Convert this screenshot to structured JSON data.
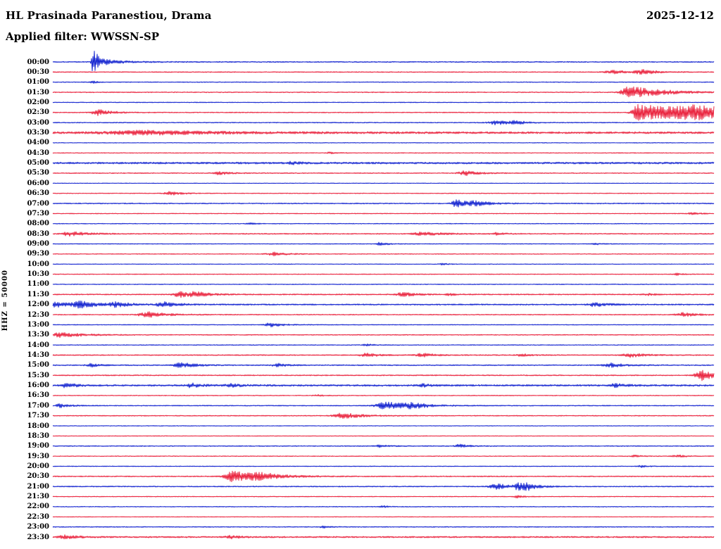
{
  "header": {
    "station": "HL Prasinada Paranestiou, Drama",
    "date": "2025-12-12",
    "filter": "Applied filter: WWSSN-SP"
  },
  "axis": {
    "channel_label": "HHZ = 50000"
  },
  "colors": {
    "blue": "#0012cc",
    "red": "#e8112e",
    "text": "#000000",
    "background": "#ffffff"
  },
  "chart_data": {
    "type": "line",
    "title": "HL Prasinada Paranestiou, Drama",
    "subtitle": "Applied filter: WWSSN-SP",
    "date": "2025-12-12",
    "station": "HL Prasinada Paranestiou, Drama",
    "channel": "HHZ",
    "scale": 50000,
    "num_rows": 48,
    "row_duration_minutes": 30,
    "start_time": "00:00",
    "end_time": "23:30",
    "color_alternation": [
      "blue",
      "red"
    ],
    "events_key": "events per row: p = onset position as fraction of the 30-minute row, a = peak amplitude in px, w = onset width fraction, t = exponential decay length fraction; noise = background trace half-thickness in px",
    "rows": [
      {
        "label": "00:00",
        "color": "blue",
        "noise": 0.8,
        "events": [
          {
            "p": 0.06,
            "a": 22,
            "w": 0.0012,
            "t": 0.006
          },
          {
            "p": 0.068,
            "a": 4,
            "w": 0.003,
            "t": 0.035
          }
        ]
      },
      {
        "label": "00:30",
        "color": "red",
        "noise": 0.7,
        "events": [
          {
            "p": 0.85,
            "a": 2.2,
            "w": 0.01,
            "t": 0.03
          },
          {
            "p": 0.893,
            "a": 3,
            "w": 0.008,
            "t": 0.02
          }
        ]
      },
      {
        "label": "01:00",
        "color": "blue",
        "noise": 0.6,
        "events": [
          {
            "p": 0.06,
            "a": 1.6,
            "w": 0.002,
            "t": 0.01
          }
        ]
      },
      {
        "label": "01:30",
        "color": "red",
        "noise": 0.7,
        "events": [
          {
            "p": 0.872,
            "a": 8.5,
            "w": 0.008,
            "t": 0.05
          }
        ]
      },
      {
        "label": "02:00",
        "color": "blue",
        "noise": 0.6,
        "events": []
      },
      {
        "label": "02:30",
        "color": "red",
        "noise": 0.7,
        "events": [
          {
            "p": 0.068,
            "a": 4.5,
            "w": 0.006,
            "t": 0.02
          },
          {
            "p": 0.885,
            "a": 12,
            "w": 0.006,
            "t": 0.1
          },
          {
            "p": 0.975,
            "a": 6,
            "w": 0.02,
            "t": 0.08
          }
        ]
      },
      {
        "label": "03:00",
        "color": "blue",
        "noise": 0.7,
        "events": [
          {
            "p": 0.672,
            "a": 3.2,
            "w": 0.008,
            "t": 0.02
          },
          {
            "p": 0.7,
            "a": 2.2,
            "w": 0.006,
            "t": 0.015
          }
        ]
      },
      {
        "label": "03:30",
        "color": "red",
        "noise": 1.5,
        "events": [
          {
            "p": 0.15,
            "a": 2.6,
            "w": 0.05,
            "t": 0.1
          }
        ]
      },
      {
        "label": "04:00",
        "color": "blue",
        "noise": 0.5,
        "events": []
      },
      {
        "label": "04:30",
        "color": "red",
        "noise": 0.6,
        "events": [
          {
            "p": 0.42,
            "a": 1.2,
            "w": 0.004,
            "t": 0.01
          }
        ]
      },
      {
        "label": "05:00",
        "color": "blue",
        "noise": 1.4,
        "events": [
          {
            "p": 0.36,
            "a": 2,
            "w": 0.004,
            "t": 0.012
          }
        ]
      },
      {
        "label": "05:30",
        "color": "red",
        "noise": 0.7,
        "events": [
          {
            "p": 0.25,
            "a": 2.6,
            "w": 0.006,
            "t": 0.015
          },
          {
            "p": 0.625,
            "a": 3.2,
            "w": 0.008,
            "t": 0.02
          }
        ]
      },
      {
        "label": "06:00",
        "color": "blue",
        "noise": 0.5,
        "events": []
      },
      {
        "label": "06:30",
        "color": "red",
        "noise": 0.6,
        "events": [
          {
            "p": 0.178,
            "a": 2.6,
            "w": 0.006,
            "t": 0.018
          }
        ]
      },
      {
        "label": "07:00",
        "color": "blue",
        "noise": 0.8,
        "events": [
          {
            "p": 0.612,
            "a": 5,
            "w": 0.007,
            "t": 0.02
          },
          {
            "p": 0.64,
            "a": 2.6,
            "w": 0.006,
            "t": 0.02
          }
        ]
      },
      {
        "label": "07:30",
        "color": "red",
        "noise": 0.6,
        "events": [
          {
            "p": 0.968,
            "a": 1.6,
            "w": 0.005,
            "t": 0.012
          }
        ]
      },
      {
        "label": "08:00",
        "color": "blue",
        "noise": 0.6,
        "events": [
          {
            "p": 0.3,
            "a": 1,
            "w": 0.004,
            "t": 0.01
          }
        ]
      },
      {
        "label": "08:30",
        "color": "red",
        "noise": 0.8,
        "events": [
          {
            "p": 0.024,
            "a": 3.4,
            "w": 0.006,
            "t": 0.025
          },
          {
            "p": 0.56,
            "a": 2.4,
            "w": 0.01,
            "t": 0.03
          },
          {
            "p": 0.672,
            "a": 1.6,
            "w": 0.005,
            "t": 0.012
          }
        ]
      },
      {
        "label": "09:00",
        "color": "blue",
        "noise": 0.6,
        "events": [
          {
            "p": 0.495,
            "a": 2.6,
            "w": 0.003,
            "t": 0.01
          },
          {
            "p": 0.82,
            "a": 1.5,
            "w": 0.003,
            "t": 0.008
          }
        ]
      },
      {
        "label": "09:30",
        "color": "red",
        "noise": 0.6,
        "events": [
          {
            "p": 0.335,
            "a": 2.4,
            "w": 0.008,
            "t": 0.02
          }
        ]
      },
      {
        "label": "10:00",
        "color": "blue",
        "noise": 0.5,
        "events": [
          {
            "p": 0.59,
            "a": 1.1,
            "w": 0.004,
            "t": 0.01
          }
        ]
      },
      {
        "label": "10:30",
        "color": "red",
        "noise": 0.6,
        "events": [
          {
            "p": 0.945,
            "a": 1.4,
            "w": 0.004,
            "t": 0.01
          }
        ]
      },
      {
        "label": "11:00",
        "color": "blue",
        "noise": 0.6,
        "events": []
      },
      {
        "label": "11:30",
        "color": "red",
        "noise": 0.9,
        "events": [
          {
            "p": 0.193,
            "a": 3.8,
            "w": 0.007,
            "t": 0.02
          },
          {
            "p": 0.215,
            "a": 3.2,
            "w": 0.006,
            "t": 0.02
          },
          {
            "p": 0.53,
            "a": 3,
            "w": 0.006,
            "t": 0.018
          },
          {
            "p": 0.6,
            "a": 1.5,
            "w": 0.004,
            "t": 0.01
          },
          {
            "p": 0.9,
            "a": 1.4,
            "w": 0.004,
            "t": 0.01
          }
        ]
      },
      {
        "label": "12:00",
        "color": "blue",
        "noise": 1.0,
        "events": [
          {
            "p": 0.005,
            "a": 3.8,
            "w": 0.006,
            "t": 0.02
          },
          {
            "p": 0.042,
            "a": 4.4,
            "w": 0.008,
            "t": 0.025
          },
          {
            "p": 0.096,
            "a": 3.4,
            "w": 0.007,
            "t": 0.02
          },
          {
            "p": 0.168,
            "a": 3.8,
            "w": 0.007,
            "t": 0.02
          },
          {
            "p": 0.82,
            "a": 2.8,
            "w": 0.007,
            "t": 0.02
          }
        ]
      },
      {
        "label": "12:30",
        "color": "red",
        "noise": 0.7,
        "events": [
          {
            "p": 0.145,
            "a": 3.8,
            "w": 0.01,
            "t": 0.03
          },
          {
            "p": 0.953,
            "a": 2.8,
            "w": 0.007,
            "t": 0.02
          }
        ]
      },
      {
        "label": "13:00",
        "color": "blue",
        "noise": 0.6,
        "events": [
          {
            "p": 0.33,
            "a": 3,
            "w": 0.006,
            "t": 0.018
          }
        ]
      },
      {
        "label": "13:30",
        "color": "red",
        "noise": 0.7,
        "events": [
          {
            "p": 0.012,
            "a": 3.4,
            "w": 0.008,
            "t": 0.035
          }
        ]
      },
      {
        "label": "14:00",
        "color": "blue",
        "noise": 0.6,
        "events": [
          {
            "p": 0.475,
            "a": 1.4,
            "w": 0.004,
            "t": 0.01
          }
        ]
      },
      {
        "label": "14:30",
        "color": "red",
        "noise": 0.8,
        "events": [
          {
            "p": 0.475,
            "a": 2.4,
            "w": 0.007,
            "t": 0.018
          },
          {
            "p": 0.56,
            "a": 2.4,
            "w": 0.007,
            "t": 0.018
          },
          {
            "p": 0.71,
            "a": 1.9,
            "w": 0.005,
            "t": 0.012
          },
          {
            "p": 0.875,
            "a": 2.8,
            "w": 0.008,
            "t": 0.022
          }
        ]
      },
      {
        "label": "15:00",
        "color": "blue",
        "noise": 0.8,
        "events": [
          {
            "p": 0.058,
            "a": 2.4,
            "w": 0.005,
            "t": 0.012
          },
          {
            "p": 0.195,
            "a": 3.4,
            "w": 0.008,
            "t": 0.022
          },
          {
            "p": 0.34,
            "a": 2.4,
            "w": 0.005,
            "t": 0.014
          },
          {
            "p": 0.845,
            "a": 2.8,
            "w": 0.008,
            "t": 0.022
          }
        ]
      },
      {
        "label": "15:30",
        "color": "red",
        "noise": 0.8,
        "events": [
          {
            "p": 0.982,
            "a": 7,
            "w": 0.007,
            "t": 0.02
          }
        ]
      },
      {
        "label": "16:00",
        "color": "blue",
        "noise": 1.3,
        "events": [
          {
            "p": 0.02,
            "a": 2.8,
            "w": 0.006,
            "t": 0.016
          },
          {
            "p": 0.21,
            "a": 2.8,
            "w": 0.005,
            "t": 0.014
          },
          {
            "p": 0.27,
            "a": 2.4,
            "w": 0.005,
            "t": 0.014
          },
          {
            "p": 0.56,
            "a": 1.9,
            "w": 0.004,
            "t": 0.01
          },
          {
            "p": 0.85,
            "a": 2.4,
            "w": 0.005,
            "t": 0.014
          }
        ]
      },
      {
        "label": "16:30",
        "color": "red",
        "noise": 0.6,
        "events": [
          {
            "p": 0.4,
            "a": 1.1,
            "w": 0.004,
            "t": 0.01
          }
        ]
      },
      {
        "label": "17:00",
        "color": "blue",
        "noise": 0.7,
        "events": [
          {
            "p": 0.012,
            "a": 2.8,
            "w": 0.005,
            "t": 0.014
          },
          {
            "p": 0.505,
            "a": 6,
            "w": 0.01,
            "t": 0.03
          },
          {
            "p": 0.545,
            "a": 3,
            "w": 0.008,
            "t": 0.025
          }
        ]
      },
      {
        "label": "17:30",
        "color": "red",
        "noise": 0.7,
        "events": [
          {
            "p": 0.44,
            "a": 4,
            "w": 0.01,
            "t": 0.028
          }
        ]
      },
      {
        "label": "18:00",
        "color": "blue",
        "noise": 0.5,
        "events": []
      },
      {
        "label": "18:30",
        "color": "red",
        "noise": 0.5,
        "events": []
      },
      {
        "label": "19:00",
        "color": "blue",
        "noise": 0.7,
        "events": [
          {
            "p": 0.495,
            "a": 1.5,
            "w": 0.006,
            "t": 0.015
          },
          {
            "p": 0.615,
            "a": 2.4,
            "w": 0.005,
            "t": 0.014
          }
        ]
      },
      {
        "label": "19:30",
        "color": "red",
        "noise": 0.6,
        "events": [
          {
            "p": 0.88,
            "a": 1.4,
            "w": 0.004,
            "t": 0.01
          },
          {
            "p": 0.945,
            "a": 1.9,
            "w": 0.005,
            "t": 0.012
          }
        ]
      },
      {
        "label": "20:00",
        "color": "blue",
        "noise": 0.6,
        "events": [
          {
            "p": 0.89,
            "a": 1.4,
            "w": 0.004,
            "t": 0.01
          }
        ]
      },
      {
        "label": "20:30",
        "color": "red",
        "noise": 0.8,
        "events": [
          {
            "p": 0.272,
            "a": 8.5,
            "w": 0.008,
            "t": 0.035
          },
          {
            "p": 0.315,
            "a": 3.5,
            "w": 0.01,
            "t": 0.03
          }
        ]
      },
      {
        "label": "21:00",
        "color": "blue",
        "noise": 0.8,
        "events": [
          {
            "p": 0.672,
            "a": 3.8,
            "w": 0.008,
            "t": 0.022
          },
          {
            "p": 0.703,
            "a": 6,
            "w": 0.003,
            "t": 0.012
          },
          {
            "p": 0.718,
            "a": 4.5,
            "w": 0.004,
            "t": 0.015
          }
        ]
      },
      {
        "label": "21:30",
        "color": "red",
        "noise": 0.6,
        "events": [
          {
            "p": 0.703,
            "a": 2,
            "w": 0.003,
            "t": 0.01
          }
        ]
      },
      {
        "label": "22:00",
        "color": "blue",
        "noise": 0.6,
        "events": [
          {
            "p": 0.5,
            "a": 1.3,
            "w": 0.004,
            "t": 0.01
          }
        ]
      },
      {
        "label": "22:30",
        "color": "red",
        "noise": 0.5,
        "events": []
      },
      {
        "label": "23:00",
        "color": "blue",
        "noise": 0.7,
        "events": [
          {
            "p": 0.41,
            "a": 1.4,
            "w": 0.004,
            "t": 0.01
          }
        ]
      },
      {
        "label": "23:30",
        "color": "red",
        "noise": 1.1,
        "events": [
          {
            "p": 0.02,
            "a": 2.4,
            "w": 0.008,
            "t": 0.02
          },
          {
            "p": 0.27,
            "a": 1.9,
            "w": 0.006,
            "t": 0.015
          }
        ]
      }
    ]
  }
}
